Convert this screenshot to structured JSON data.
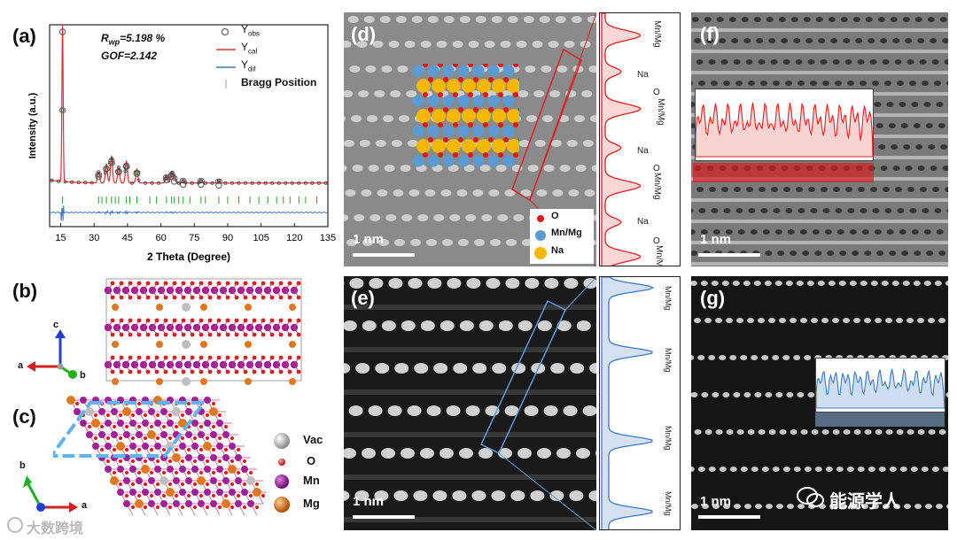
{
  "figure": {
    "colors": {
      "obs": "#555555",
      "cal": "#e03030",
      "dif": "#3c78c8",
      "bragg": "#2ca02c",
      "o_atom": "#e01818",
      "mn_atom": "#5b9bd5",
      "na_atom": "#f5b800",
      "vac_atom": "#bfbfbf",
      "mg_atom": "#e07820",
      "mnpurple": "#a0209a",
      "profile_red": "#e02020",
      "profile_blue": "#3c78c8"
    },
    "panels": {
      "a": {
        "label": "(a)"
      },
      "b": {
        "label": "(b)"
      },
      "c": {
        "label": "(c)"
      },
      "d": {
        "label": "(d)"
      },
      "e": {
        "label": "(e)"
      },
      "f": {
        "label": "(f)"
      },
      "g": {
        "label": "(g)"
      }
    },
    "panel_a": {
      "rwp_text": "R",
      "rwp_sub": "wp",
      "rwp_value": "=5.198 %",
      "gof_text": "GOF=2.142",
      "legend_obs": "Y",
      "legend_obs_sub": "obs",
      "legend_cal": "Y",
      "legend_cal_sub": "cal",
      "legend_dif": "Y",
      "legend_dif_sub": "dif",
      "legend_bragg": "Bragg Position"
    },
    "panel_b_axes": {
      "c": "c",
      "a": "a",
      "b": "b"
    },
    "panel_c_axes": {
      "b": "b",
      "a": "a"
    },
    "species_legend": [
      "Vac",
      "O",
      "Mn",
      "Mg"
    ],
    "panel_d": {
      "legend": [
        "O",
        "Mn/Mg",
        "Na"
      ],
      "profile_labels": [
        "Mn/Mg",
        "Na",
        "O",
        "Mn/Mg",
        "Na",
        "O",
        "Mn/Mg",
        "Na",
        "O",
        "Mn/Mg"
      ],
      "scale": "1 nm"
    },
    "panel_e": {
      "profile_labels": [
        "Mn/Mg",
        "Mn/Mg",
        "Mn/Mg",
        "Mn/Mg"
      ],
      "scale": "1 nm"
    },
    "panel_f": {
      "scale": "1 nm"
    },
    "panel_g": {
      "scale": "1 nm"
    },
    "watermark_right": "能源学人",
    "watermark_left": "大数跨境"
  },
  "chart_data": {
    "type": "line",
    "title": "",
    "xlabel": "2 Theta (Degree)",
    "ylabel": "Intensity (a.u.)",
    "xlim": [
      10,
      135
    ],
    "x_ticks": [
      15,
      30,
      45,
      60,
      75,
      90,
      105,
      120,
      135
    ],
    "x_tick_labels": [
      "15",
      "30",
      "45",
      "60",
      "75",
      "90",
      "105",
      "120",
      "135"
    ],
    "y_ticks_shown": false,
    "series": [
      {
        "name": "Yobs",
        "style": "open-circle markers",
        "x": [
          15.8,
          32.0,
          35.5,
          37.8,
          41.0,
          44.5,
          49.2,
          62.5,
          64.8,
          66.0,
          70.0,
          78.0,
          86.0
        ],
        "y": [
          1.0,
          0.07,
          0.12,
          0.17,
          0.1,
          0.14,
          0.09,
          0.05,
          0.07,
          0.04,
          0.02,
          0.02,
          0.015
        ]
      },
      {
        "name": "Ycal",
        "style": "red line",
        "x": [
          15.8,
          32.0,
          35.5,
          37.8,
          41.0,
          44.5,
          49.2,
          62.5,
          64.8,
          66.0,
          70.0,
          78.0,
          86.0
        ],
        "y": [
          1.0,
          0.07,
          0.12,
          0.17,
          0.1,
          0.14,
          0.09,
          0.05,
          0.07,
          0.04,
          0.02,
          0.02,
          0.015
        ]
      },
      {
        "name": "Ydif",
        "style": "blue line",
        "offset": -0.13
      },
      {
        "name": "Bragg Position",
        "style": "green ticks",
        "x": [
          15.8,
          32.0,
          33.5,
          35.5,
          37.8,
          39.5,
          41.0,
          44.5,
          46.0,
          49.2,
          55.0,
          58.0,
          62.5,
          64.8,
          66.0,
          68.0,
          70.0,
          73.0,
          78.0,
          80.0,
          86.0,
          90.0,
          95.0,
          100.0,
          104.0,
          108.0,
          112.0,
          115.0,
          118.0,
          122.0,
          125.0,
          130.0
        ]
      }
    ]
  }
}
